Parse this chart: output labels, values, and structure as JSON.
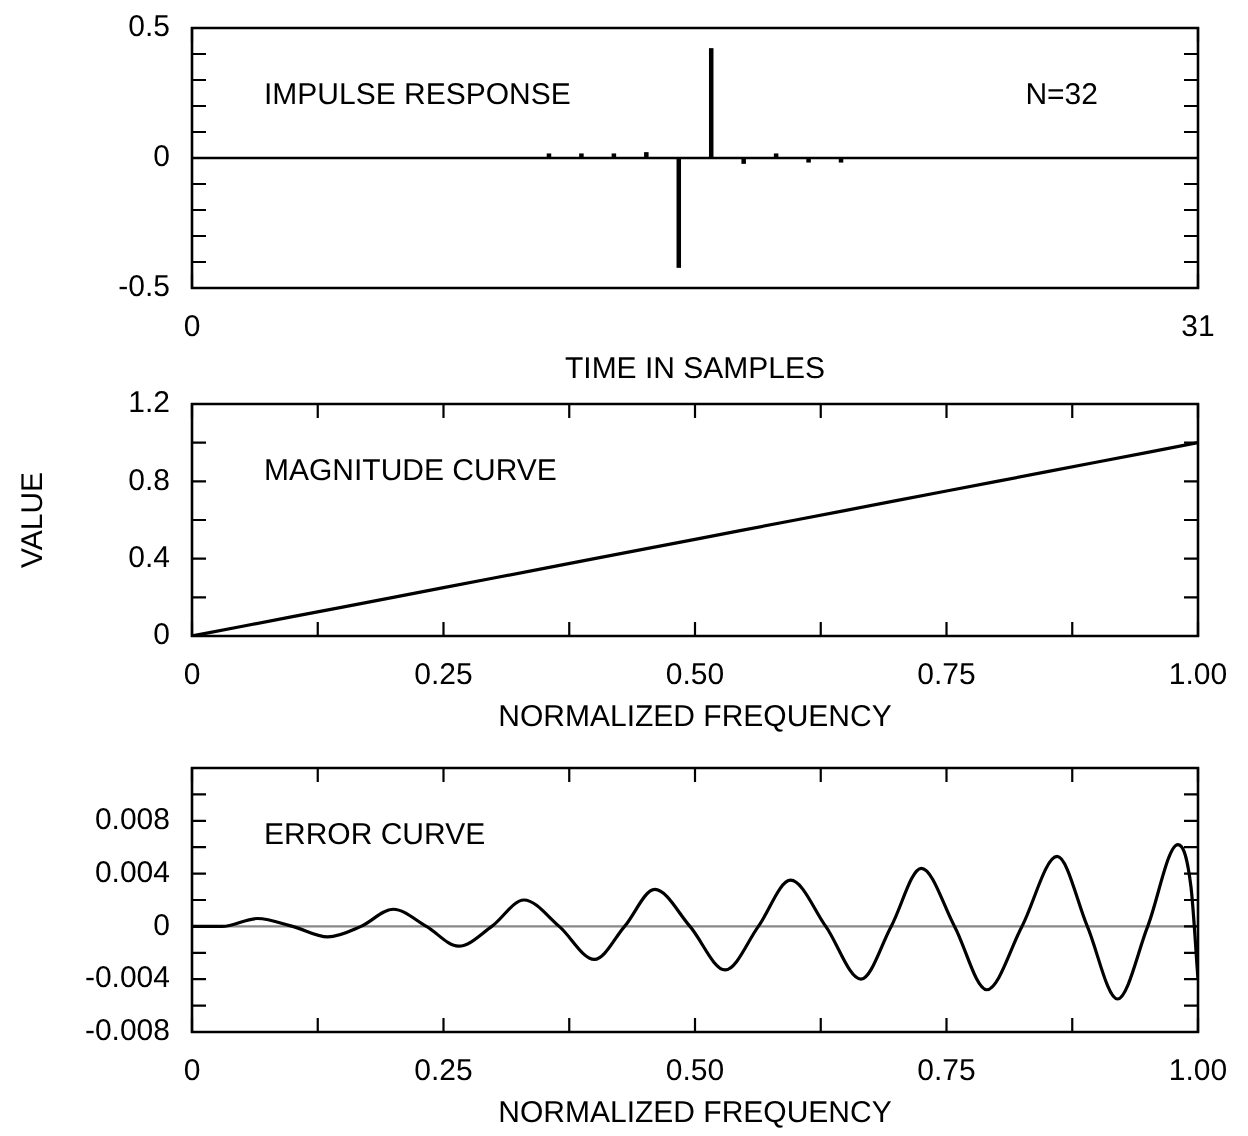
{
  "chart_data": [
    {
      "type": "bar",
      "xlabel": "TIME IN SAMPLES",
      "annotations": [
        "IMPULSE RESPONSE",
        "N=32"
      ],
      "x": [
        0,
        1,
        2,
        3,
        4,
        5,
        6,
        7,
        8,
        9,
        10,
        11,
        12,
        13,
        14,
        15,
        16,
        17,
        18,
        19,
        20,
        21,
        22,
        23,
        24,
        25,
        26,
        27,
        28,
        29,
        30,
        31
      ],
      "series": [
        {
          "color": "#000000",
          "values": [
            0,
            0,
            0,
            0,
            0,
            0,
            0,
            0,
            0,
            0,
            0,
            0.015,
            0.015,
            0.015,
            0.02,
            -0.42,
            0.42,
            -0.02,
            0.015,
            -0.015,
            -0.015,
            0,
            0,
            0,
            0,
            0,
            0,
            0,
            0,
            0,
            0,
            0
          ]
        }
      ],
      "xlim": [
        0,
        31
      ],
      "xticks": [
        0,
        31
      ],
      "ylim": [
        -0.5,
        0.5
      ],
      "yticks": [
        -0.5,
        {
          "value": -0.4,
          "label": null
        },
        {
          "value": -0.3,
          "label": null
        },
        {
          "value": -0.2,
          "label": null
        },
        {
          "value": -0.1,
          "label": null
        },
        0,
        {
          "value": 0.1,
          "label": null
        },
        {
          "value": 0.2,
          "label": null
        },
        {
          "value": 0.3,
          "label": null
        },
        {
          "value": 0.4,
          "label": null
        },
        0.5
      ],
      "ref_lines": [
        {
          "axis": "y",
          "value": 0,
          "color": "#000000"
        }
      ]
    },
    {
      "type": "line",
      "xlabel": "NORMALIZED FREQUENCY",
      "ylabel": "VALUE",
      "annotations": [
        "MAGNITUDE CURVE"
      ],
      "marker": "none",
      "x": [
        0,
        0.1,
        0.2,
        0.3,
        0.4,
        0.5,
        0.6,
        0.7,
        0.8,
        0.9,
        1.0
      ],
      "series": [
        {
          "color": "#000000",
          "values": [
            0,
            0.1,
            0.2,
            0.3,
            0.4,
            0.5,
            0.6,
            0.7,
            0.8,
            0.9,
            1.0
          ]
        }
      ],
      "xlim": [
        0,
        1
      ],
      "xticks": [
        0,
        {
          "value": 0.125,
          "label": null
        },
        0.25,
        {
          "value": 0.375,
          "label": null
        },
        {
          "value": 0.5,
          "label": "0.50"
        },
        {
          "value": 0.625,
          "label": null
        },
        0.75,
        {
          "value": 0.875,
          "label": null
        },
        {
          "value": 1,
          "label": "1.00"
        }
      ],
      "ylim": [
        0,
        1.2
      ],
      "yticks": [
        0,
        {
          "value": 0.2,
          "label": null
        },
        0.4,
        {
          "value": 0.6,
          "label": null
        },
        0.8,
        {
          "value": 1.0,
          "label": null
        },
        1.2
      ]
    },
    {
      "type": "line",
      "xlabel": "NORMALIZED FREQUENCY",
      "annotations": [
        "ERROR CURVE"
      ],
      "marker": "none",
      "x": [
        0,
        0.03,
        0.065,
        0.1,
        0.135,
        0.168,
        0.2,
        0.233,
        0.265,
        0.298,
        0.33,
        0.365,
        0.4,
        0.43,
        0.46,
        0.495,
        0.53,
        0.563,
        0.595,
        0.63,
        0.665,
        0.695,
        0.725,
        0.758,
        0.79,
        0.825,
        0.86,
        0.89,
        0.92,
        0.95,
        0.98,
        0.993,
        1.0
      ],
      "series": [
        {
          "color": "#000000",
          "values": [
            0,
            0,
            0.0006,
            0,
            -0.0008,
            0,
            0.0013,
            0,
            -0.0015,
            0,
            0.002,
            0,
            -0.0025,
            0,
            0.0028,
            0,
            -0.0033,
            0,
            0.0035,
            0,
            -0.004,
            0,
            0.0044,
            0,
            -0.0048,
            0,
            0.0053,
            0,
            -0.0055,
            0,
            0.0062,
            0.003,
            -0.004
          ]
        }
      ],
      "xlim": [
        0,
        1
      ],
      "xticks": [
        0,
        {
          "value": 0.125,
          "label": null
        },
        0.25,
        {
          "value": 0.375,
          "label": null
        },
        {
          "value": 0.5,
          "label": "0.50"
        },
        {
          "value": 0.625,
          "label": null
        },
        0.75,
        {
          "value": 0.875,
          "label": null
        },
        {
          "value": 1,
          "label": "1.00"
        }
      ],
      "ylim": [
        -0.008,
        0.012
      ],
      "yticks": [
        -0.008,
        {
          "value": -0.006,
          "label": null
        },
        -0.004,
        {
          "value": -0.002,
          "label": null
        },
        0,
        {
          "value": 0.002,
          "label": null
        },
        0.004,
        {
          "value": 0.006,
          "label": null
        },
        0.008,
        {
          "value": 0.01,
          "label": null
        },
        {
          "value": 0.012,
          "label": null
        }
      ],
      "ref_lines": [
        {
          "axis": "y",
          "value": 0,
          "color": "#888888"
        }
      ]
    }
  ]
}
